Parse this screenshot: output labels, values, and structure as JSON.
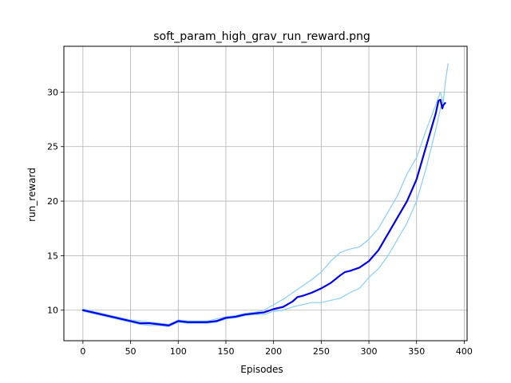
{
  "chart_data": {
    "type": "line",
    "title": "soft_param_high_grav_run_reward.png",
    "xlabel": "Episodes",
    "ylabel": "run_reward",
    "xlim": [
      -20,
      403
    ],
    "ylim": [
      7.2,
      34.2
    ],
    "xticks": [
      0,
      50,
      100,
      150,
      200,
      250,
      300,
      350,
      400
    ],
    "yticks": [
      10,
      15,
      20,
      25,
      30
    ],
    "grid": true,
    "colors": {
      "mean": "#0000ee",
      "band": "#87cefa"
    },
    "series": [
      {
        "role": "mean",
        "x": [
          0,
          10,
          20,
          30,
          40,
          50,
          60,
          70,
          80,
          90,
          100,
          110,
          120,
          130,
          140,
          150,
          160,
          170,
          180,
          190,
          200,
          210,
          220,
          225,
          230,
          240,
          250,
          260,
          270,
          275,
          280,
          290,
          300,
          310,
          320,
          330,
          340,
          345,
          350,
          355,
          360,
          365,
          370,
          373,
          375,
          377,
          378,
          380
        ],
        "y": [
          10.0,
          9.8,
          9.6,
          9.4,
          9.2,
          9.0,
          8.8,
          8.8,
          8.7,
          8.6,
          9.0,
          8.9,
          8.9,
          8.9,
          9.0,
          9.3,
          9.4,
          9.6,
          9.7,
          9.8,
          10.1,
          10.3,
          10.8,
          11.2,
          11.3,
          11.6,
          12.0,
          12.5,
          13.2,
          13.5,
          13.6,
          13.9,
          14.5,
          15.5,
          17.0,
          18.5,
          20.0,
          21.0,
          22.0,
          23.5,
          25.0,
          26.5,
          28.0,
          29.2,
          29.3,
          28.5,
          28.8,
          29.0
        ]
      },
      {
        "role": "upper",
        "x": [
          0,
          10,
          20,
          30,
          40,
          50,
          60,
          70,
          80,
          90,
          100,
          110,
          120,
          130,
          140,
          150,
          160,
          170,
          180,
          190,
          200,
          210,
          220,
          230,
          240,
          250,
          260,
          270,
          280,
          290,
          300,
          310,
          320,
          330,
          340,
          350,
          360,
          370,
          375,
          378,
          380,
          383
        ],
        "y": [
          10.1,
          9.9,
          9.7,
          9.5,
          9.3,
          9.1,
          9.0,
          8.9,
          8.8,
          8.7,
          9.1,
          9.0,
          9.0,
          9.0,
          9.2,
          9.4,
          9.5,
          9.7,
          9.8,
          10.0,
          10.5,
          11.0,
          11.6,
          12.2,
          12.8,
          13.5,
          14.5,
          15.3,
          15.6,
          15.8,
          16.5,
          17.5,
          19.0,
          20.5,
          22.5,
          24.0,
          26.5,
          28.8,
          30.0,
          29.0,
          30.8,
          32.6
        ]
      },
      {
        "role": "lower",
        "x": [
          0,
          10,
          20,
          30,
          40,
          50,
          60,
          70,
          80,
          90,
          100,
          110,
          120,
          130,
          140,
          150,
          160,
          170,
          180,
          190,
          200,
          210,
          220,
          230,
          240,
          250,
          260,
          270,
          280,
          290,
          300,
          310,
          320,
          330,
          340,
          350,
          360,
          370,
          375,
          378
        ],
        "y": [
          9.9,
          9.7,
          9.5,
          9.3,
          9.1,
          8.9,
          8.7,
          8.6,
          8.6,
          8.5,
          8.9,
          8.8,
          8.8,
          8.8,
          8.9,
          9.2,
          9.3,
          9.5,
          9.6,
          9.6,
          9.9,
          10.0,
          10.3,
          10.5,
          10.7,
          10.7,
          10.9,
          11.1,
          11.6,
          12.0,
          13.0,
          13.8,
          15.0,
          16.5,
          18.0,
          20.0,
          23.0,
          26.5,
          28.5,
          29.2
        ]
      }
    ]
  }
}
